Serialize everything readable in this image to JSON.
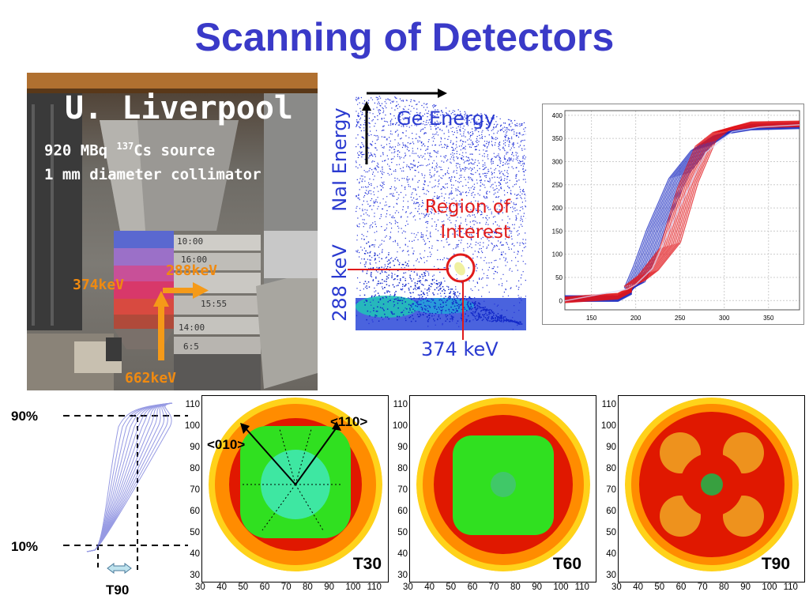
{
  "title": "Scanning of Detectors",
  "photo": {
    "site": "U. Liverpool",
    "source_prefix": "920 MBq ",
    "source_isotope_mass": "137",
    "source_suffix": "Cs source",
    "collimator": "1 mm diameter collimator",
    "energy_374": "374keV",
    "energy_288": "288keV",
    "energy_662": "662keV",
    "shelf_labels": [
      "10:00",
      "16:00",
      "15:55",
      "14:00",
      "6:5"
    ],
    "colors": {
      "orange": "#f08a10"
    }
  },
  "spectrum": {
    "x_axis_label": "Ge Energy",
    "y_axis_label": "NaI Energy",
    "roi_label_line1": "Region of",
    "roi_label_line2": "Interest",
    "y_marker": "288 keV",
    "x_marker": "374 keV"
  },
  "pulse_plot": {
    "chart_data": {
      "type": "line",
      "x_ticks": [
        150,
        200,
        250,
        300,
        350
      ],
      "y_ticks": [
        0,
        50,
        100,
        150,
        200,
        250,
        300,
        350,
        400
      ],
      "xlim": [
        120,
        385
      ],
      "ylim": [
        -20,
        410
      ],
      "grid": true,
      "series": [
        {
          "color": "#1a2ac0",
          "x": [
            120,
            180,
            195,
            200,
            210,
            225,
            250,
            275,
            300,
            330,
            385
          ],
          "y": [
            5,
            5,
            20,
            35,
            80,
            160,
            270,
            330,
            362,
            375,
            378
          ]
        },
        {
          "color": "#e0141a",
          "x": [
            120,
            180,
            195,
            200,
            215,
            240,
            260,
            280,
            300,
            330,
            385
          ],
          "y": [
            2,
            10,
            25,
            38,
            60,
            120,
            250,
            340,
            370,
            380,
            382
          ]
        },
        {
          "color": "#d8d8f8",
          "x": [
            120,
            190,
            200,
            220,
            250,
            280,
            310,
            340,
            385
          ],
          "y": [
            0,
            25,
            35,
            70,
            200,
            320,
            365,
            375,
            380
          ]
        }
      ]
    }
  },
  "t_plot": {
    "label_90": "90%",
    "label_10": "10%",
    "label_t90": "T90"
  },
  "maps": [
    {
      "label": "T30",
      "annot_110": "<110>",
      "annot_010": "<010>",
      "x_ticks": [
        "30",
        "40",
        "50",
        "60",
        "70",
        "80",
        "90",
        "100",
        "110"
      ],
      "y_ticks": [
        "110",
        "100",
        "90",
        "80",
        "70",
        "60",
        "50",
        "40",
        "30"
      ],
      "colors": [
        "#ffd21a",
        "#ff8c00",
        "#e01800",
        "#30e020",
        "#40e8b0"
      ]
    },
    {
      "label": "T60",
      "x_ticks": [
        "30",
        "40",
        "50",
        "60",
        "70",
        "80",
        "90",
        "100",
        "110"
      ],
      "y_ticks": [
        "110",
        "100",
        "90",
        "80",
        "70",
        "60",
        "50",
        "40",
        "30"
      ],
      "colors": [
        "#ffd21a",
        "#ff8c00",
        "#e01800",
        "#30e020",
        "#40e8b0"
      ]
    },
    {
      "label": "T90",
      "x_ticks": [
        "30",
        "40",
        "50",
        "60",
        "70",
        "80",
        "90",
        "100",
        "110"
      ],
      "y_ticks": [
        "110",
        "100",
        "90",
        "80",
        "70",
        "60",
        "50",
        "40",
        "30"
      ],
      "colors": [
        "#ffd21a",
        "#ff8c00",
        "#e01800",
        "#30e020",
        "#40e8b0"
      ]
    }
  ]
}
